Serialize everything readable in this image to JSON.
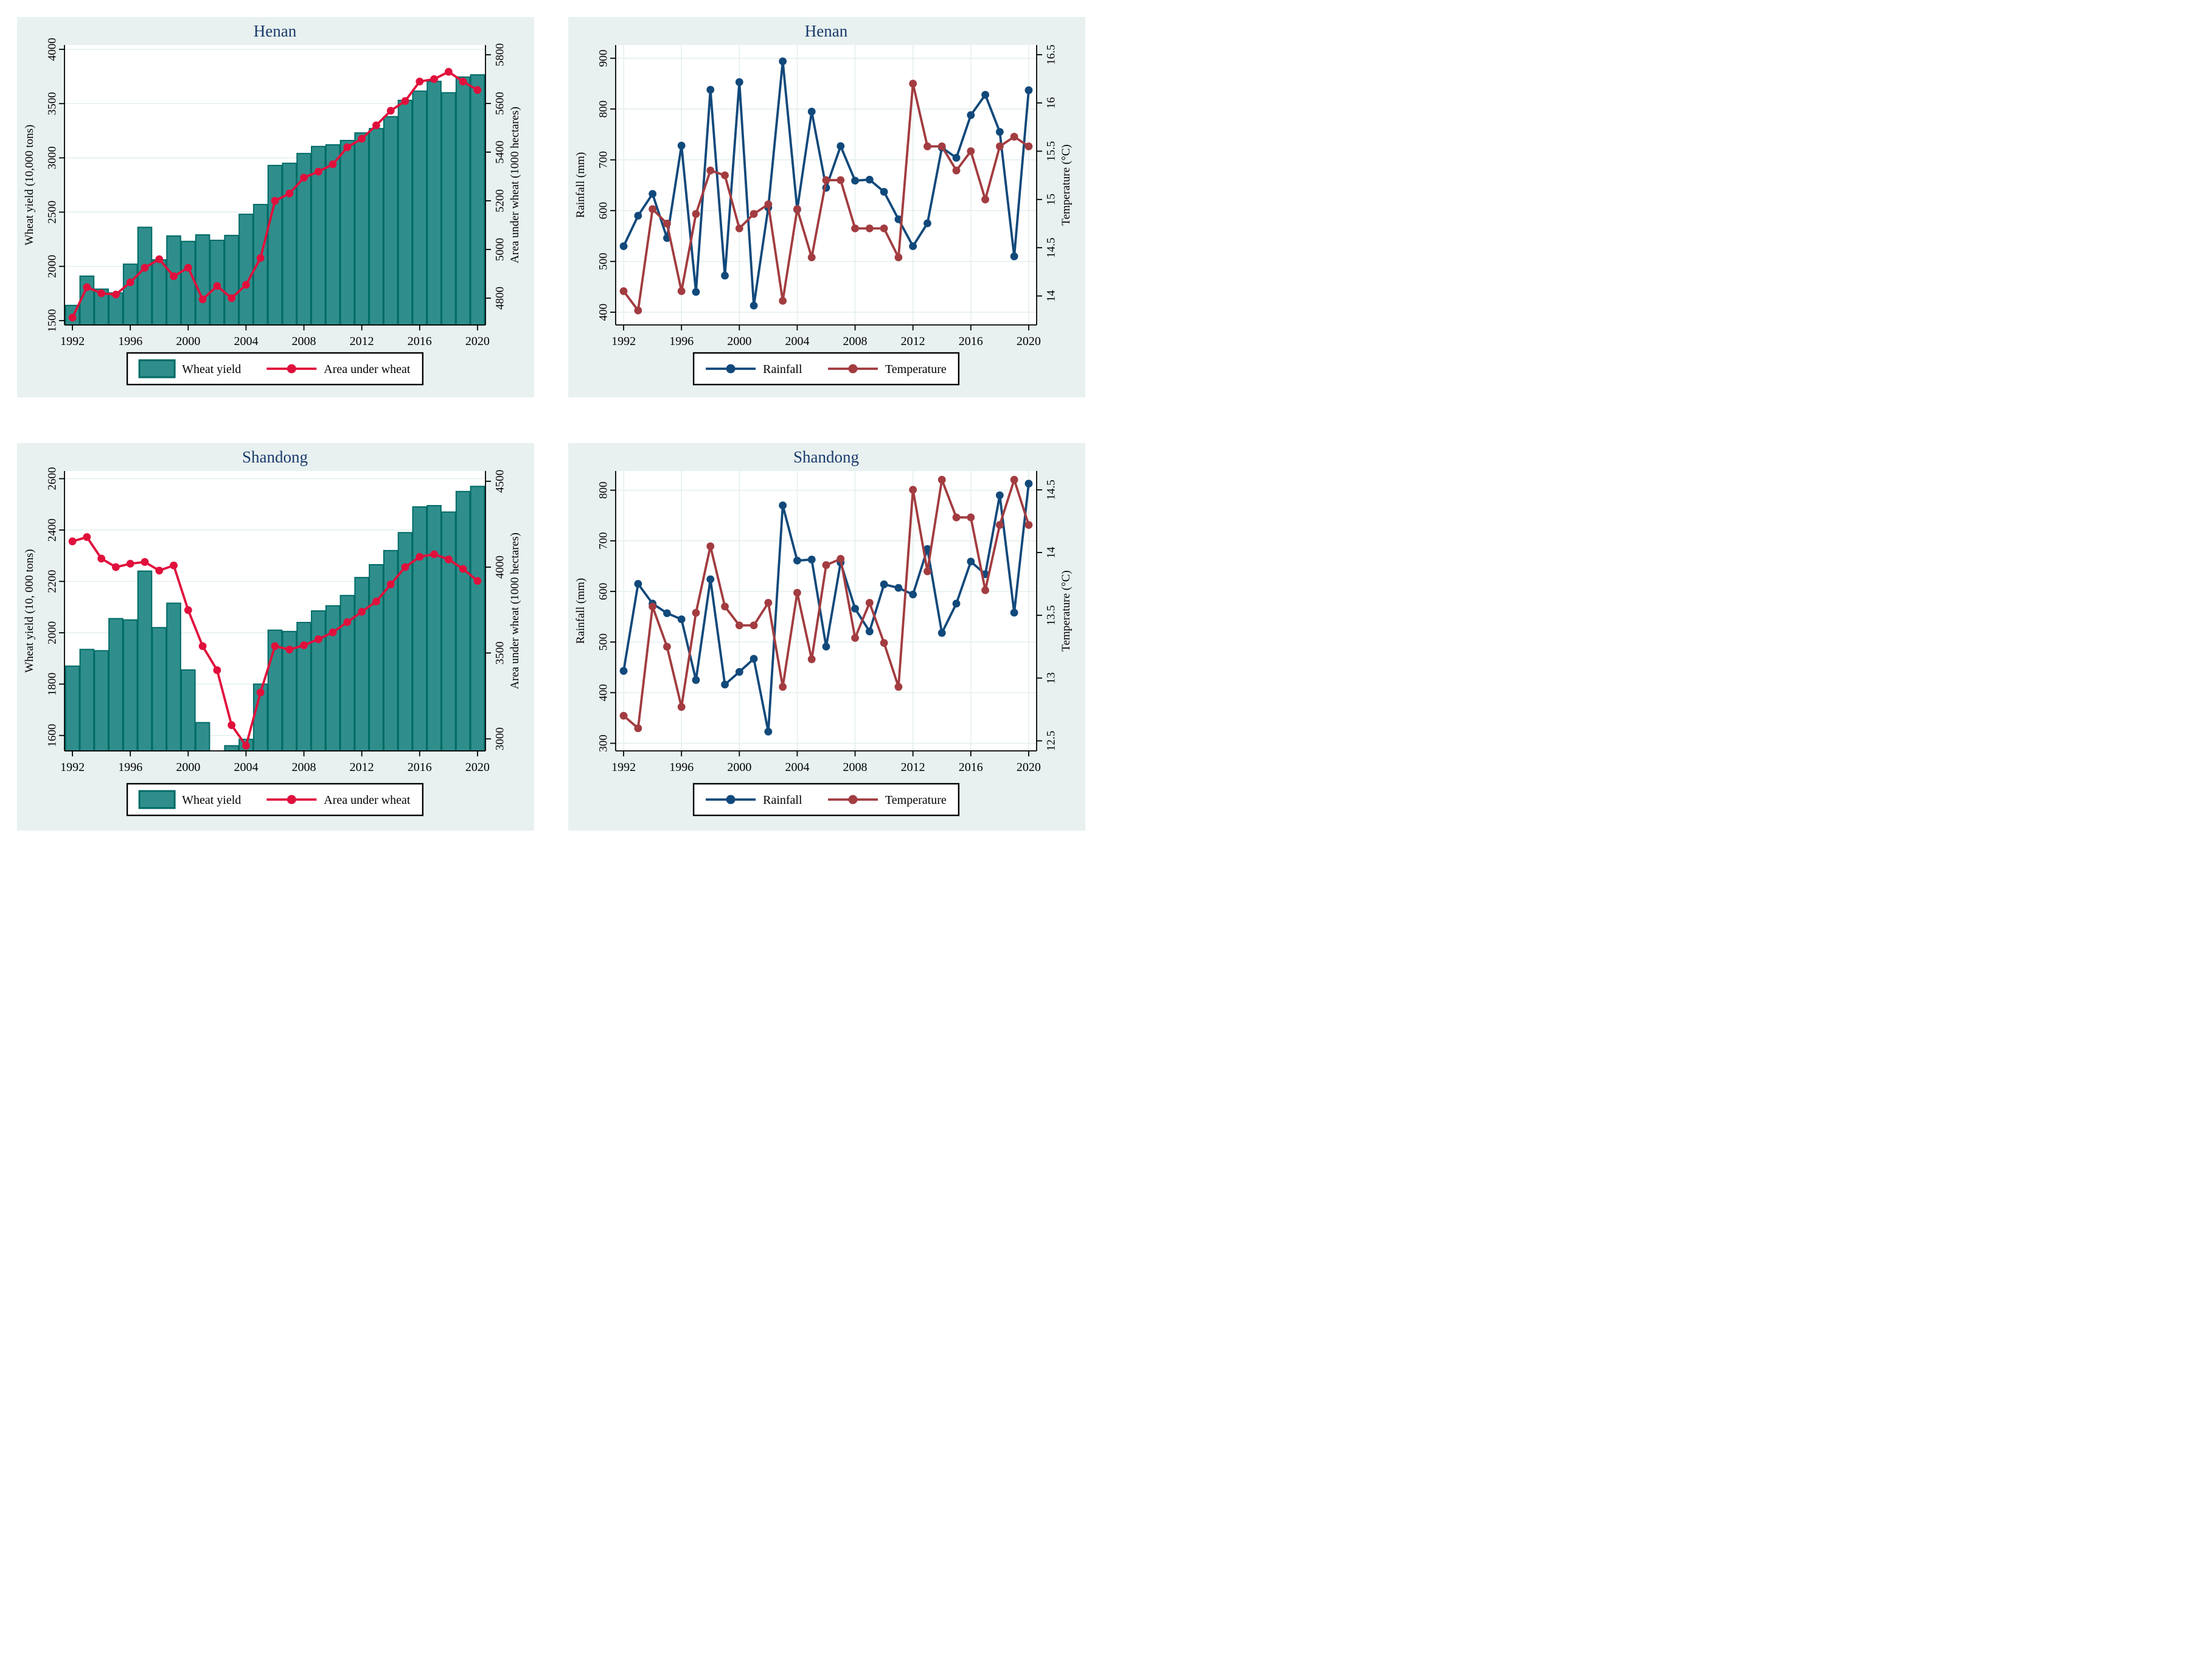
{
  "colors": {
    "panel_bg": "#E8F1F0",
    "plot_bg": "#FFFFFF",
    "grid": "#DFECEB",
    "axis": "#000000",
    "title": "#1A3A6B",
    "bar_fill": "#2F8E8C",
    "bar_stroke": "#006B66",
    "crimson": "#E0103C",
    "navy": "#11497B",
    "maroon": "#A23C40",
    "legend_bg": "#FFFFFF",
    "legend_border": "#000000"
  },
  "chart_data": [
    {
      "id": "henan-wheat",
      "type": "bar",
      "title": "Henan",
      "x_ticks": [
        1992,
        1996,
        2000,
        2004,
        2008,
        2012,
        2016,
        2020
      ],
      "x_range": [
        1991.45,
        2020.55
      ],
      "grid": {
        "horizontal": true,
        "vertical": false
      },
      "legend_position": "bottom",
      "y_left": {
        "label": "Wheat yield (10,000 tons)",
        "ticks": [
          1500,
          2000,
          2500,
          3000,
          3500,
          4000
        ],
        "range": [
          1460,
          4040
        ]
      },
      "y_right": {
        "label": "Area under wheat (1000 hectares)",
        "ticks": [
          4800,
          5000,
          5200,
          5400,
          5600,
          5800
        ],
        "range": [
          4690,
          5840
        ]
      },
      "years": [
        1992,
        1993,
        1994,
        1995,
        1996,
        1997,
        1998,
        1999,
        2000,
        2001,
        2002,
        2003,
        2004,
        2005,
        2006,
        2007,
        2008,
        2009,
        2010,
        2011,
        2012,
        2013,
        2014,
        2015,
        2016,
        2017,
        2018,
        2019,
        2020
      ],
      "series": [
        {
          "name": "Wheat yield",
          "kind": "bar",
          "axis": "left",
          "color": "bar_fill",
          "stroke": "bar_stroke",
          "values": [
            1640,
            1910,
            1790,
            1755,
            2020,
            2360,
            2060,
            2280,
            2230,
            2290,
            2240,
            2285,
            2480,
            2570,
            2930,
            2950,
            3040,
            3105,
            3120,
            3160,
            3230,
            3270,
            3380,
            3530,
            3615,
            3705,
            3600,
            3745,
            3765
          ]
        },
        {
          "name": "Area under wheat",
          "kind": "line",
          "axis": "right",
          "color": "crimson",
          "values": [
            4720,
            4845,
            4820,
            4815,
            4865,
            4925,
            4960,
            4890,
            4925,
            4795,
            4850,
            4800,
            4855,
            4965,
            5200,
            5230,
            5295,
            5320,
            5350,
            5420,
            5455,
            5510,
            5570,
            5610,
            5690,
            5700,
            5730,
            5690,
            5655
          ]
        }
      ]
    },
    {
      "id": "henan-climate",
      "type": "line",
      "title": "Henan",
      "x_ticks": [
        1992,
        1996,
        2000,
        2004,
        2008,
        2012,
        2016,
        2020
      ],
      "x_range": [
        1991.45,
        2020.55
      ],
      "grid": {
        "horizontal": true,
        "vertical": true
      },
      "legend_position": "bottom",
      "y_left": {
        "label": "Rainfall (mm)",
        "ticks": [
          400,
          500,
          600,
          700,
          800,
          900
        ],
        "range": [
          375,
          926
        ]
      },
      "y_right": {
        "label": "Temperature (°C)",
        "ticks": [
          14,
          14.5,
          15,
          15.5,
          16,
          16.5
        ],
        "range": [
          13.7,
          16.6
        ]
      },
      "years": [
        1992,
        1993,
        1994,
        1995,
        1996,
        1997,
        1998,
        1999,
        2000,
        2001,
        2002,
        2003,
        2004,
        2005,
        2006,
        2007,
        2008,
        2009,
        2010,
        2011,
        2012,
        2013,
        2014,
        2015,
        2016,
        2017,
        2018,
        2019,
        2020
      ],
      "series": [
        {
          "name": "Rainfall",
          "kind": "line",
          "axis": "left",
          "color": "navy",
          "values": [
            530,
            590,
            633,
            546,
            728,
            440,
            838,
            472,
            853,
            413,
            606,
            894,
            602,
            795,
            645,
            727,
            659,
            661,
            637,
            583,
            530,
            575,
            724,
            704,
            788,
            828,
            755,
            510,
            837
          ]
        },
        {
          "name": "Temperature",
          "kind": "line",
          "axis": "right",
          "color": "maroon",
          "values": [
            14.05,
            13.85,
            14.9,
            14.75,
            14.05,
            14.85,
            15.3,
            15.25,
            14.7,
            14.85,
            14.95,
            13.95,
            14.9,
            14.4,
            15.2,
            15.2,
            14.7,
            14.7,
            14.7,
            14.4,
            16.2,
            15.55,
            15.55,
            15.3,
            15.5,
            15.0,
            15.55,
            15.65,
            15.55
          ]
        }
      ]
    },
    {
      "id": "shandong-wheat",
      "type": "bar",
      "title": "Shandong",
      "x_ticks": [
        1992,
        1996,
        2000,
        2004,
        2008,
        2012,
        2016,
        2020
      ],
      "x_range": [
        1991.45,
        2020.55
      ],
      "grid": {
        "horizontal": true,
        "vertical": false
      },
      "legend_position": "bottom",
      "y_left": {
        "label": "Wheat yield (10, 000 tons)",
        "ticks": [
          1600,
          1800,
          2000,
          2200,
          2400,
          2600
        ],
        "range": [
          1540,
          2630
        ]
      },
      "y_right": {
        "label": "Area under wheat (1000 hectares)",
        "ticks": [
          3000,
          3500,
          4000,
          4500
        ],
        "range": [
          2930,
          4560
        ]
      },
      "years": [
        1992,
        1993,
        1994,
        1995,
        1996,
        1997,
        1998,
        1999,
        2000,
        2001,
        2002,
        2003,
        2004,
        2005,
        2006,
        2007,
        2008,
        2009,
        2010,
        2011,
        2012,
        2013,
        2014,
        2015,
        2016,
        2017,
        2018,
        2019,
        2020
      ],
      "series": [
        {
          "name": "Wheat yield",
          "kind": "bar",
          "axis": "left",
          "color": "bar_fill",
          "stroke": "bar_stroke",
          "values": [
            1870,
            1935,
            1930,
            2055,
            2050,
            2240,
            2020,
            2115,
            1855,
            1650,
            null,
            1560,
            1585,
            1800,
            2010,
            2005,
            2040,
            2085,
            2105,
            2145,
            2215,
            2265,
            2320,
            2390,
            2490,
            2495,
            2470,
            2550,
            2570
          ]
        },
        {
          "name": "Area under wheat",
          "kind": "line",
          "axis": "right",
          "color": "crimson",
          "values": [
            4150,
            4175,
            4050,
            4000,
            4020,
            4030,
            3980,
            4010,
            3750,
            3540,
            3400,
            3080,
            2960,
            3270,
            3540,
            3520,
            3545,
            3580,
            3620,
            3680,
            3740,
            3800,
            3900,
            4000,
            4060,
            4075,
            4045,
            3990,
            3920
          ]
        }
      ]
    },
    {
      "id": "shandong-climate",
      "type": "line",
      "title": "Shandong",
      "x_ticks": [
        1992,
        1996,
        2000,
        2004,
        2008,
        2012,
        2016,
        2020
      ],
      "x_range": [
        1991.45,
        2020.55
      ],
      "grid": {
        "horizontal": true,
        "vertical": true
      },
      "legend_position": "bottom",
      "y_left": {
        "label": "Rainfall (mm)",
        "ticks": [
          300,
          400,
          500,
          600,
          700,
          800
        ],
        "range": [
          285,
          838
        ]
      },
      "y_right": {
        "label": "Temperature (°C)",
        "ticks": [
          12.5,
          13,
          13.5,
          14,
          14.5
        ],
        "range": [
          12.42,
          14.65
        ]
      },
      "years": [
        1992,
        1993,
        1994,
        1995,
        1996,
        1997,
        1998,
        1999,
        2000,
        2001,
        2002,
        2003,
        2004,
        2005,
        2006,
        2007,
        2008,
        2009,
        2010,
        2011,
        2012,
        2013,
        2014,
        2015,
        2016,
        2017,
        2018,
        2019,
        2020
      ],
      "series": [
        {
          "name": "Rainfall",
          "kind": "line",
          "axis": "left",
          "color": "navy",
          "values": [
            443,
            615,
            576,
            557,
            545,
            425,
            624,
            416,
            441,
            467,
            323,
            770,
            661,
            663,
            491,
            657,
            566,
            521,
            614,
            607,
            594,
            684,
            518,
            576,
            659,
            634,
            790,
            558,
            813
          ]
        },
        {
          "name": "Temperature",
          "kind": "line",
          "axis": "right",
          "color": "maroon",
          "values": [
            12.7,
            12.6,
            13.57,
            13.25,
            12.77,
            13.52,
            14.05,
            13.57,
            13.42,
            13.42,
            13.6,
            12.93,
            13.68,
            13.15,
            13.9,
            13.95,
            13.32,
            13.6,
            13.28,
            12.93,
            14.5,
            13.85,
            14.58,
            14.28,
            14.28,
            13.7,
            14.22,
            14.58,
            14.22
          ]
        }
      ]
    }
  ]
}
